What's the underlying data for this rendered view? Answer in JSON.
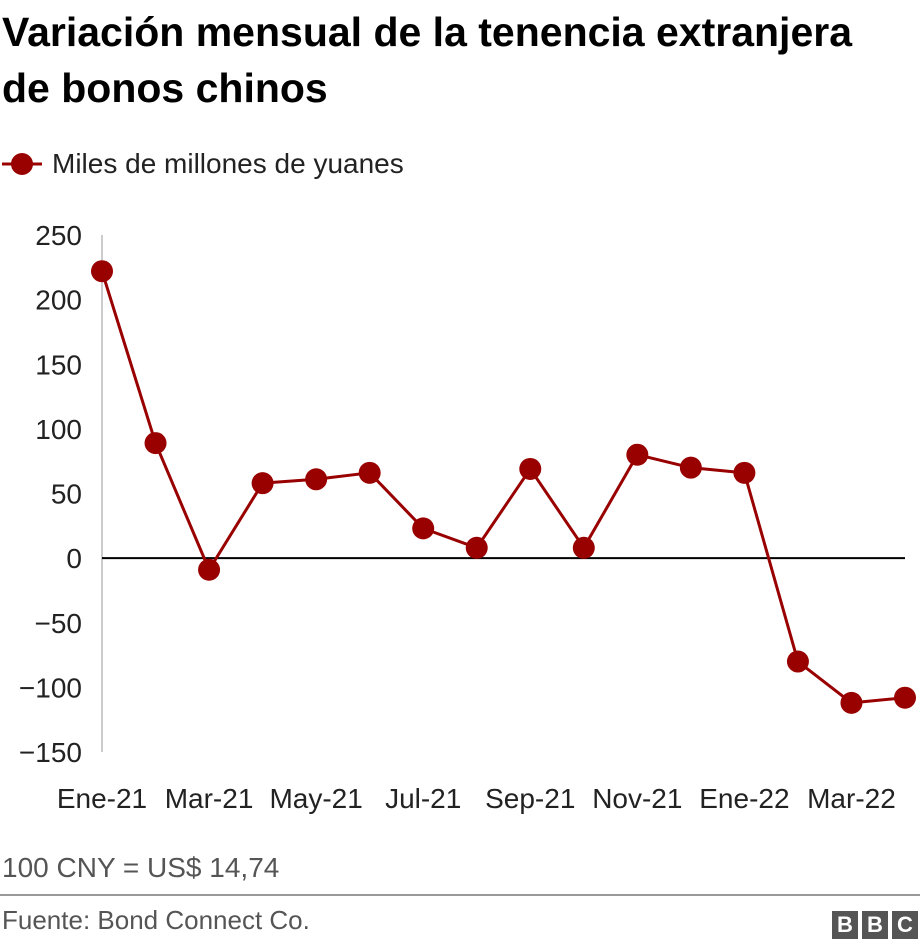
{
  "title": "Variación mensual de la tenencia extranjera de bonos chinos",
  "legend": {
    "label": "Miles de millones de yuanes"
  },
  "colors": {
    "series": "#990000",
    "zero_line": "#000000",
    "axis": "#cccccc"
  },
  "note": "100 CNY = US$ 14,74",
  "source": "Fuente: Bond Connect Co.",
  "logo": {
    "letters": [
      "B",
      "B",
      "C"
    ]
  },
  "chart_data": {
    "type": "line",
    "title": "Variación mensual de la tenencia extranjera de bonos chinos",
    "xlabel": "",
    "ylabel": "",
    "ylim": [
      -150,
      250
    ],
    "yticks": [
      250,
      200,
      150,
      100,
      50,
      0,
      -50,
      -100,
      -150
    ],
    "ytick_labels": [
      "250",
      "200",
      "150",
      "100",
      "50",
      "0",
      "−50",
      "−100",
      "−150"
    ],
    "categories": [
      "Ene-21",
      "Feb-21",
      "Mar-21",
      "Abr-21",
      "May-21",
      "Jun-21",
      "Jul-21",
      "Ago-21",
      "Sep-21",
      "Oct-21",
      "Nov-21",
      "Dic-21",
      "Ene-22",
      "Feb-22",
      "Mar-22",
      "Abr-22"
    ],
    "xtick_labels": [
      "Ene-21",
      "Mar-21",
      "May-21",
      "Jul-21",
      "Sep-21",
      "Nov-21",
      "Ene-22",
      "Mar-22"
    ],
    "grid": false,
    "legend_position": "top-left",
    "series": [
      {
        "name": "Miles de millones de yuanes",
        "values": [
          222,
          89,
          -9,
          58,
          61,
          66,
          23,
          8,
          69,
          8,
          80,
          70,
          66,
          -80,
          -112,
          -108
        ]
      }
    ]
  }
}
